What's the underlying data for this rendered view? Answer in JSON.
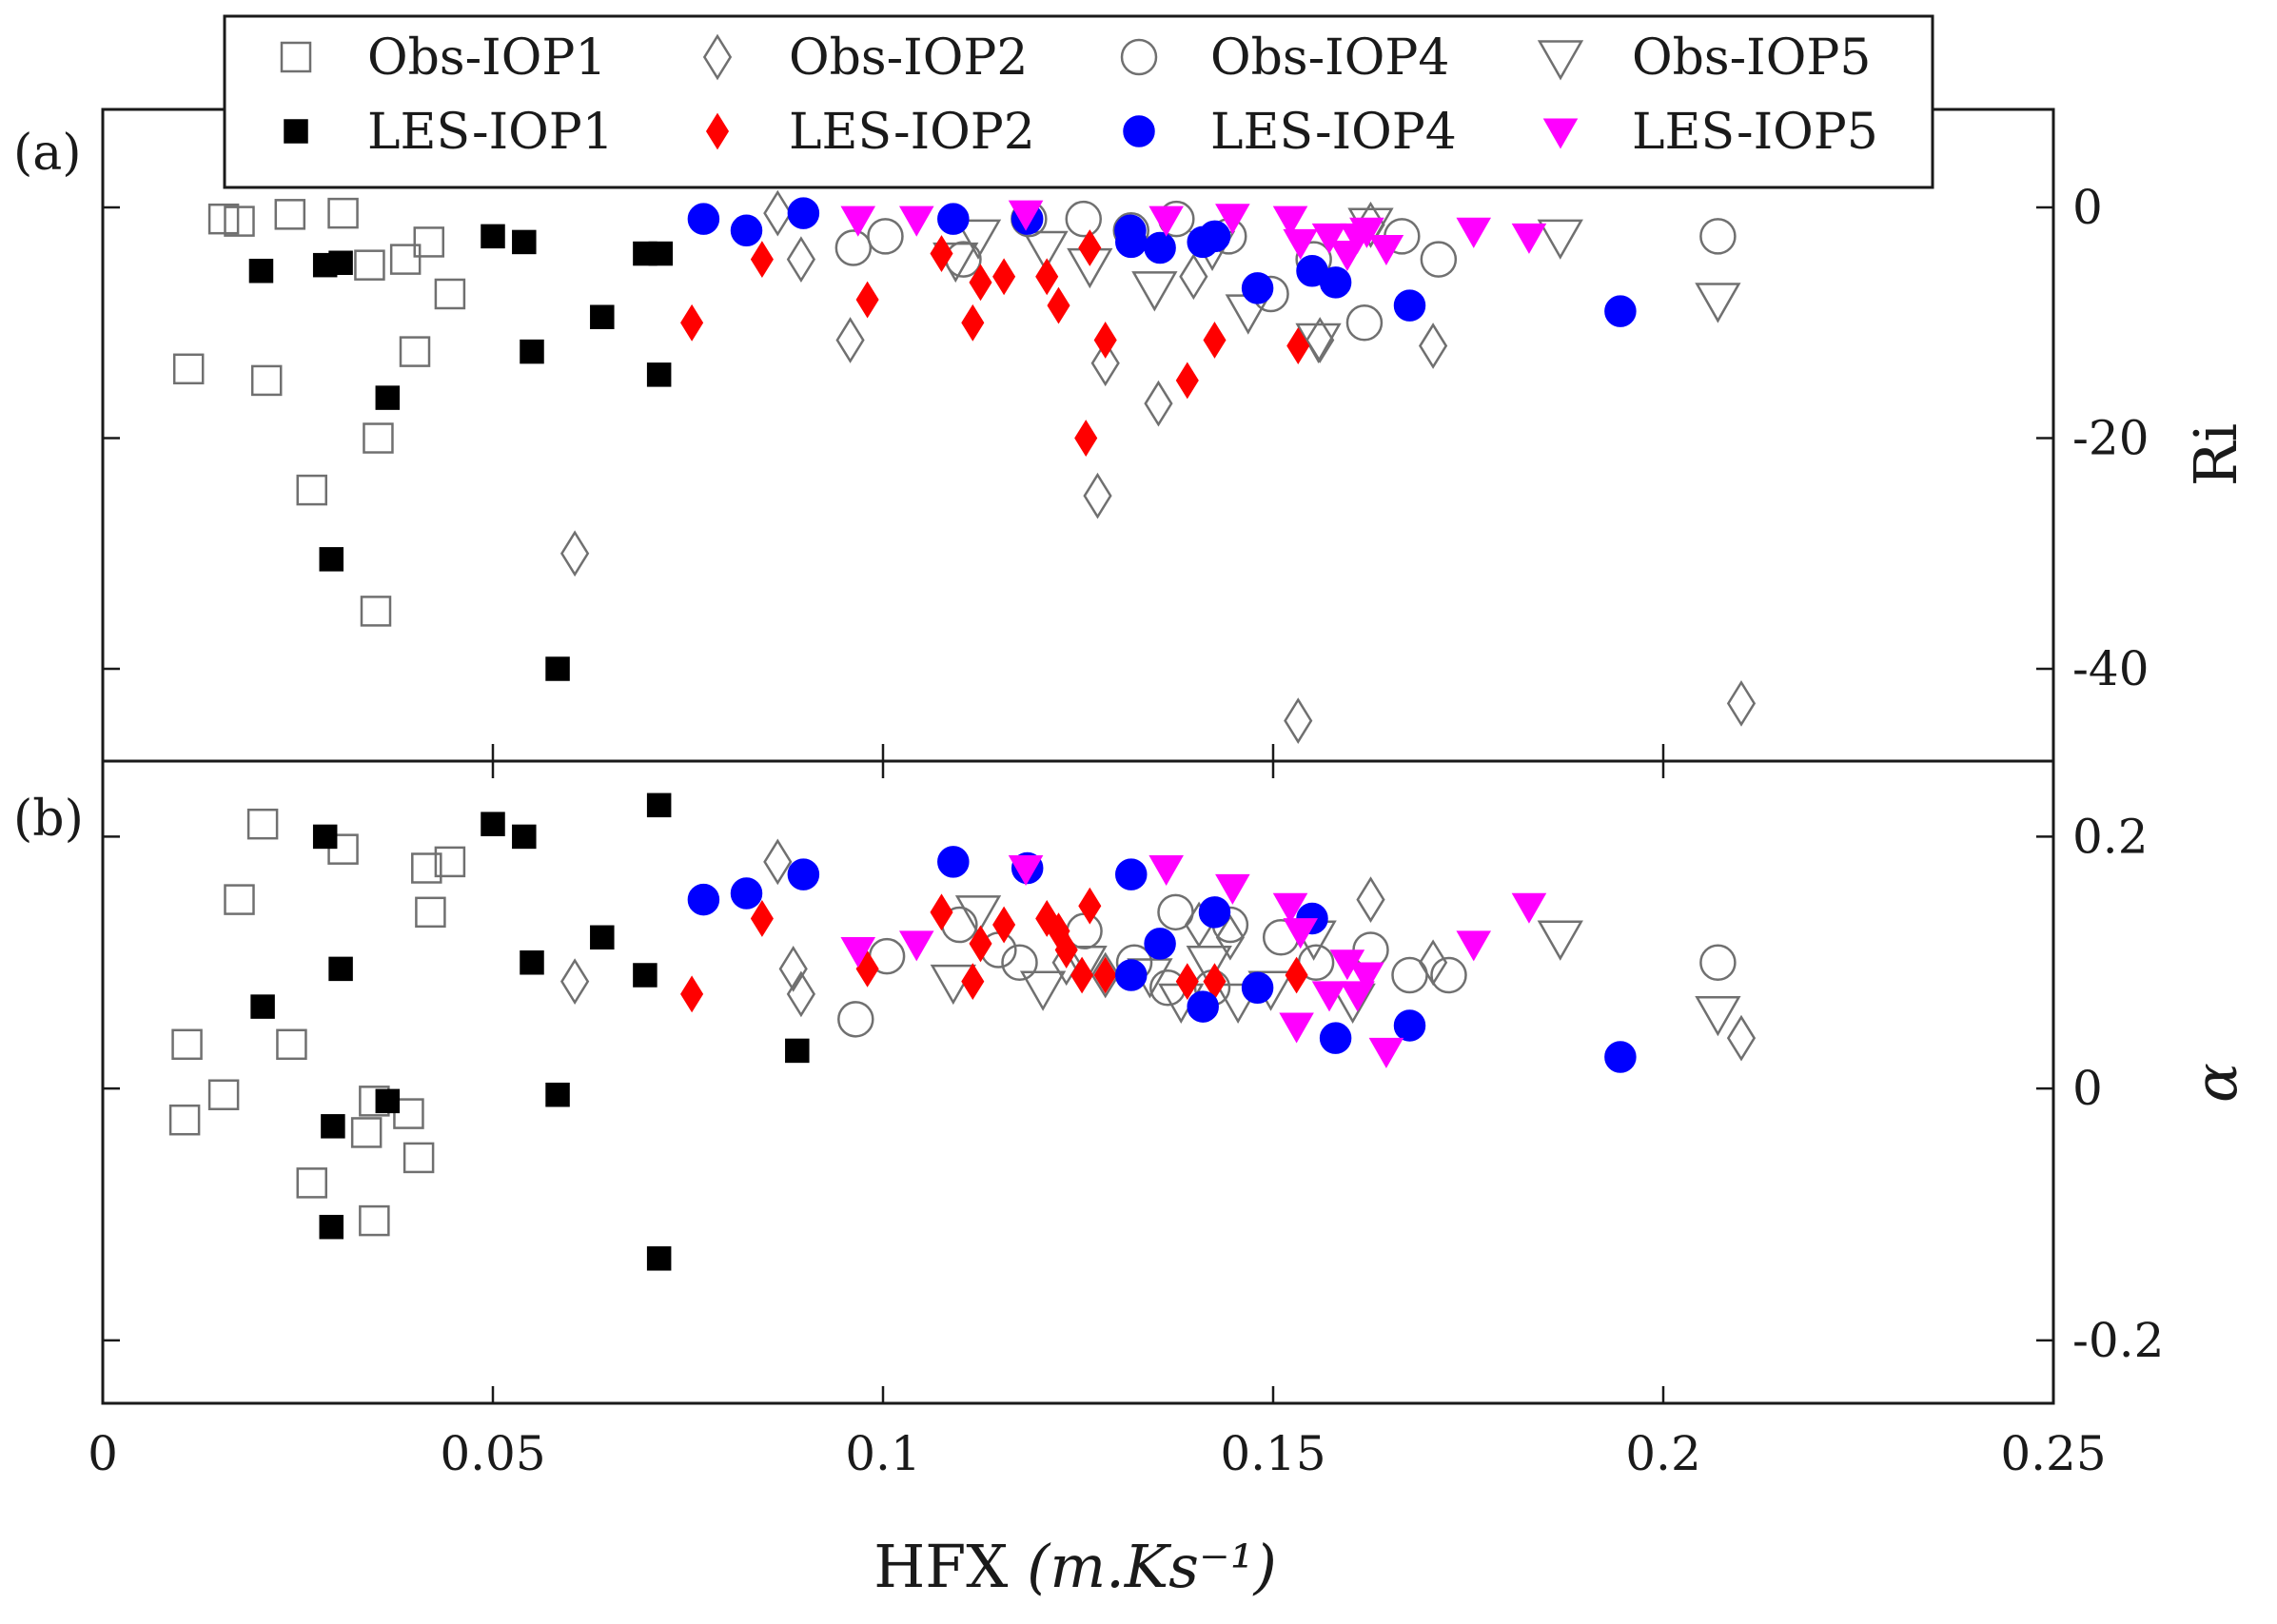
{
  "chart_data": [
    {
      "panel": "(a)",
      "type": "scatter",
      "ylabel": "Ri",
      "ylim": [
        -48,
        8.5
      ],
      "yticks": [
        0,
        -20,
        -40
      ],
      "ytick_labels": [
        "0",
        "-20",
        "-40"
      ],
      "series": [
        {
          "name": "Obs-IOP1",
          "x": [
            0.0155,
            0.0175,
            0.024,
            0.0308,
            0.0342,
            0.0388,
            0.0418,
            0.0445,
            0.011,
            0.021,
            0.04,
            0.0353,
            0.0268,
            0.035
          ],
          "y": [
            -1,
            -1.2,
            -0.6,
            -0.5,
            -5,
            -4.5,
            -3,
            -7.5,
            -14,
            -15,
            -12.5,
            -20,
            -24.5,
            -35
          ]
        },
        {
          "name": "LES-IOP1",
          "x": [
            0.0203,
            0.0285,
            0.0305,
            0.05,
            0.054,
            0.064,
            0.0695,
            0.0715,
            0.055,
            0.0365,
            0.0713,
            0.0293,
            0.0583
          ],
          "y": [
            -5.5,
            -5,
            -4.8,
            -2.5,
            -3,
            -9.5,
            -4,
            -4,
            -12.5,
            -16.5,
            -14.5,
            -30.5,
            -40
          ]
        },
        {
          "name": "Obs-IOP2",
          "x": [
            0.0605,
            0.0865,
            0.0895,
            0.0958,
            0.1275,
            0.1285,
            0.1353,
            0.1398,
            0.1532,
            0.156,
            0.1625,
            0.1705,
            0.21
          ],
          "y": [
            -30,
            -0.5,
            -4.5,
            -11.5,
            -25,
            -13.5,
            -17,
            -6,
            -44.5,
            -11.5,
            -1.5,
            -12,
            -43
          ]
        },
        {
          "name": "LES-IOP2",
          "x": [
            0.0755,
            0.0845,
            0.098,
            0.1075,
            0.1115,
            0.1125,
            0.1155,
            0.121,
            0.1225,
            0.1265,
            0.126,
            0.1285,
            0.139,
            0.1425,
            0.1532
          ],
          "y": [
            -10,
            -4.5,
            -8,
            -4,
            -10,
            -6.5,
            -6,
            -6,
            -8.5,
            -3.5,
            -20,
            -11.5,
            -15,
            -11.5,
            -12
          ]
        },
        {
          "name": "Obs-IOP4",
          "x": [
            0.0962,
            0.1003,
            0.1103,
            0.1187,
            0.1257,
            0.1318,
            0.1376,
            0.1443,
            0.1497,
            0.1552,
            0.1617,
            0.1665,
            0.1712,
            0.207
          ],
          "y": [
            -3.5,
            -2.5,
            -4.5,
            -1,
            -1,
            -2,
            -1,
            -2.5,
            -7.5,
            -4.5,
            -10,
            -2.5,
            -4.5,
            -2.5
          ]
        },
        {
          "name": "LES-IOP4",
          "x": [
            0.077,
            0.0825,
            0.0898,
            0.109,
            0.1185,
            0.1317,
            0.1355,
            0.141,
            0.1425,
            0.148,
            0.155,
            0.158,
            0.1675,
            0.1945,
            0.1318
          ],
          "y": [
            -1,
            -2,
            -0.5,
            -1,
            -1,
            -2,
            -3.5,
            -3,
            -2.5,
            -7,
            -5.5,
            -6.5,
            -8.5,
            -9,
            -3
          ]
        },
        {
          "name": "Obs-IOP5",
          "x": [
            0.1093,
            0.1122,
            0.1208,
            0.1265,
            0.1348,
            0.1422,
            0.1468,
            0.1558,
            0.1625,
            0.1868,
            0.207
          ],
          "y": [
            -4.5,
            -2.5,
            -3.5,
            -5,
            -7,
            -3.5,
            -9,
            -11.5,
            -1.5,
            -2.5,
            -8
          ]
        },
        {
          "name": "LES-IOP5",
          "x": [
            0.0968,
            0.1043,
            0.1183,
            0.1363,
            0.1448,
            0.1522,
            0.1535,
            0.1572,
            0.1595,
            0.1608,
            0.162,
            0.1645,
            0.1757,
            0.1828
          ],
          "y": [
            -1,
            -1,
            -0.5,
            -1,
            -0.8,
            -1,
            -3,
            -2.5,
            -4,
            -2.5,
            -2,
            -3.5,
            -2,
            -2.5
          ]
        }
      ]
    },
    {
      "panel": "(b)",
      "type": "scatter",
      "ylabel": "α",
      "xlabel_text": "HFX",
      "xlabel_unit": "(m.Ks⁻¹)",
      "xlim": [
        0,
        0.25
      ],
      "xticks": [
        0,
        0.05,
        0.1,
        0.15,
        0.2,
        0.25
      ],
      "xtick_labels": [
        "0",
        "0.05",
        "0.1",
        "0.15",
        "0.2",
        "0.25"
      ],
      "ylim": [
        -0.25,
        0.26
      ],
      "yticks": [
        0.2,
        0,
        -0.2
      ],
      "ytick_labels": [
        "0.2",
        "0",
        "-0.2"
      ],
      "series": [
        {
          "name": "Obs-IOP1",
          "x": [
            0.0205,
            0.0175,
            0.0308,
            0.0415,
            0.0445,
            0.042,
            0.0108,
            0.0242,
            0.0105,
            0.0155,
            0.0348,
            0.0338,
            0.0392,
            0.0405,
            0.0268,
            0.0348
          ],
          "y": [
            0.21,
            0.15,
            0.19,
            0.175,
            0.18,
            0.14,
            0.035,
            0.035,
            -0.025,
            -0.005,
            -0.01,
            -0.035,
            -0.02,
            -0.055,
            -0.075,
            -0.105
          ]
        },
        {
          "name": "LES-IOP1",
          "x": [
            0.0285,
            0.0305,
            0.0205,
            0.05,
            0.054,
            0.055,
            0.0365,
            0.0295,
            0.0293,
            0.064,
            0.0695,
            0.0713,
            0.0583,
            0.089,
            0.0713
          ],
          "y": [
            0.2,
            0.095,
            0.065,
            0.21,
            0.2,
            0.1,
            -0.01,
            -0.03,
            -0.11,
            0.12,
            0.09,
            0.225,
            -0.005,
            0.03,
            -0.135
          ]
        },
        {
          "name": "Obs-IOP2",
          "x": [
            0.0605,
            0.0865,
            0.0885,
            0.0895,
            0.1235,
            0.1285,
            0.1405,
            0.1445,
            0.1625,
            0.1705,
            0.21
          ],
          "y": [
            0.085,
            0.18,
            0.095,
            0.075,
            0.1,
            0.09,
            0.13,
            0.12,
            0.15,
            0.1,
            0.04
          ]
        },
        {
          "name": "LES-IOP2",
          "x": [
            0.0755,
            0.0845,
            0.098,
            0.1075,
            0.1115,
            0.1125,
            0.1155,
            0.121,
            0.1225,
            0.1235,
            0.1255,
            0.1265,
            0.1285,
            0.139,
            0.1425,
            0.153
          ],
          "y": [
            0.075,
            0.135,
            0.095,
            0.14,
            0.085,
            0.115,
            0.13,
            0.135,
            0.125,
            0.11,
            0.09,
            0.145,
            0.09,
            0.085,
            0.085,
            0.09
          ]
        },
        {
          "name": "Obs-IOP4",
          "x": [
            0.0965,
            0.1005,
            0.1098,
            0.1148,
            0.1175,
            0.1258,
            0.1322,
            0.1375,
            0.1365,
            0.1422,
            0.1445,
            0.151,
            0.1555,
            0.1625,
            0.1675,
            0.1725,
            0.207
          ],
          "y": [
            0.055,
            0.105,
            0.13,
            0.11,
            0.1,
            0.125,
            0.1,
            0.14,
            0.08,
            0.08,
            0.13,
            0.12,
            0.1,
            0.11,
            0.09,
            0.09,
            0.1
          ]
        },
        {
          "name": "LES-IOP4",
          "x": [
            0.077,
            0.0825,
            0.0898,
            0.109,
            0.1185,
            0.1318,
            0.1318,
            0.1355,
            0.141,
            0.1425,
            0.148,
            0.155,
            0.158,
            0.1675,
            0.1945
          ],
          "y": [
            0.15,
            0.155,
            0.17,
            0.18,
            0.175,
            0.17,
            0.09,
            0.115,
            0.065,
            0.14,
            0.08,
            0.135,
            0.04,
            0.05,
            0.025
          ]
        },
        {
          "name": "Obs-IOP5",
          "x": [
            0.109,
            0.1122,
            0.1205,
            0.1258,
            0.1342,
            0.1382,
            0.1418,
            0.1455,
            0.1497,
            0.1552,
            0.1602,
            0.1868,
            0.207
          ],
          "y": [
            0.085,
            0.14,
            0.08,
            0.1,
            0.09,
            0.07,
            0.1,
            0.07,
            0.08,
            0.12,
            0.07,
            0.12,
            0.06
          ]
        },
        {
          "name": "LES-IOP5",
          "x": [
            0.0968,
            0.1043,
            0.1183,
            0.1363,
            0.1448,
            0.1522,
            0.1535,
            0.153,
            0.1572,
            0.1595,
            0.1608,
            0.162,
            0.1645,
            0.1757,
            0.1828
          ],
          "y": [
            0.11,
            0.115,
            0.175,
            0.175,
            0.16,
            0.145,
            0.125,
            0.05,
            0.075,
            0.1,
            0.075,
            0.09,
            0.03,
            0.115,
            0.145
          ]
        }
      ]
    }
  ]
}
